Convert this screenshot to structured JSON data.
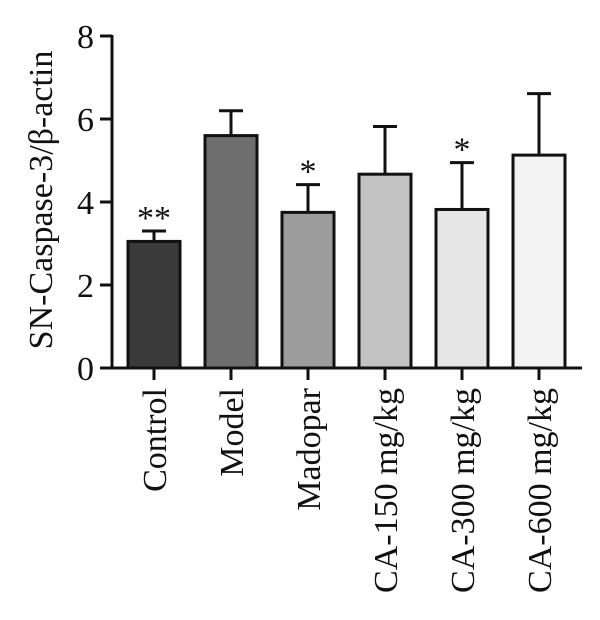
{
  "chart_data": {
    "type": "bar",
    "ylabel": "SN-Caspase-3/β-actin",
    "ylim": [
      0,
      8
    ],
    "yticks": [
      "0",
      "2",
      "4",
      "6",
      "8"
    ],
    "categories": [
      "Control",
      "Model",
      "Madopar",
      "CA-150 mg/kg",
      "CA-300 mg/kg",
      "CA-600 mg/kg"
    ],
    "values": [
      3.05,
      5.6,
      3.75,
      4.67,
      3.82,
      5.13
    ],
    "errors": [
      0.25,
      0.6,
      0.67,
      1.15,
      1.13,
      1.48
    ],
    "significance": [
      "**",
      "",
      "*",
      "",
      "*",
      ""
    ],
    "bar_colors": [
      "#3a3a3a",
      "#6e6e6e",
      "#9c9c9c",
      "#c2c2c2",
      "#e6e6e6",
      "#f3f3f3"
    ],
    "grid": false
  }
}
